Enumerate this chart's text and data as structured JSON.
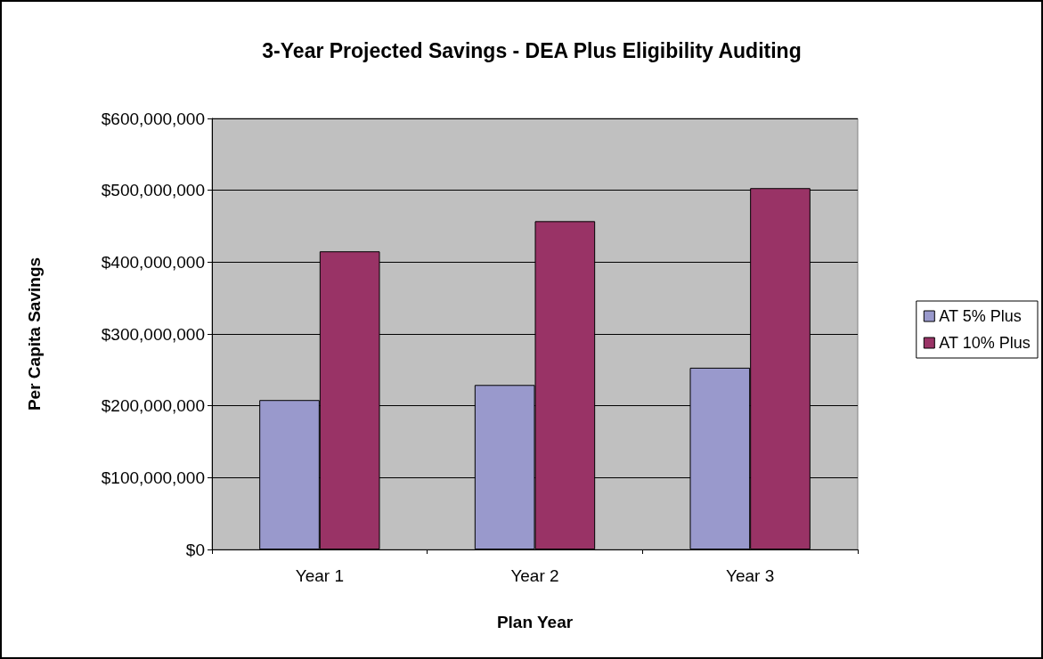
{
  "chart_data": {
    "type": "bar",
    "title": "3-Year Projected Savings - DEA Plus Eligibility Auditing",
    "xlabel": "Plan Year",
    "ylabel": "Per Capita Savings",
    "categories": [
      "Year 1",
      "Year 2",
      "Year 3"
    ],
    "series": [
      {
        "name": "AT 5% Plus",
        "color": "#9999cc",
        "values": [
          208000000,
          229000000,
          253000000
        ]
      },
      {
        "name": "AT 10% Plus",
        "color": "#993366",
        "values": [
          415000000,
          457000000,
          503000000
        ]
      }
    ],
    "ylim": [
      0,
      600000000
    ],
    "yticks": [
      {
        "value": 0,
        "label": "$0"
      },
      {
        "value": 100000000,
        "label": "$100,000,000"
      },
      {
        "value": 200000000,
        "label": "$200,000,000"
      },
      {
        "value": 300000000,
        "label": "$300,000,000"
      },
      {
        "value": 400000000,
        "label": "$400,000,000"
      },
      {
        "value": 500000000,
        "label": "$500,000,000"
      },
      {
        "value": 600000000,
        "label": "$600,000,000"
      }
    ],
    "grid": "y",
    "legend": "right"
  }
}
